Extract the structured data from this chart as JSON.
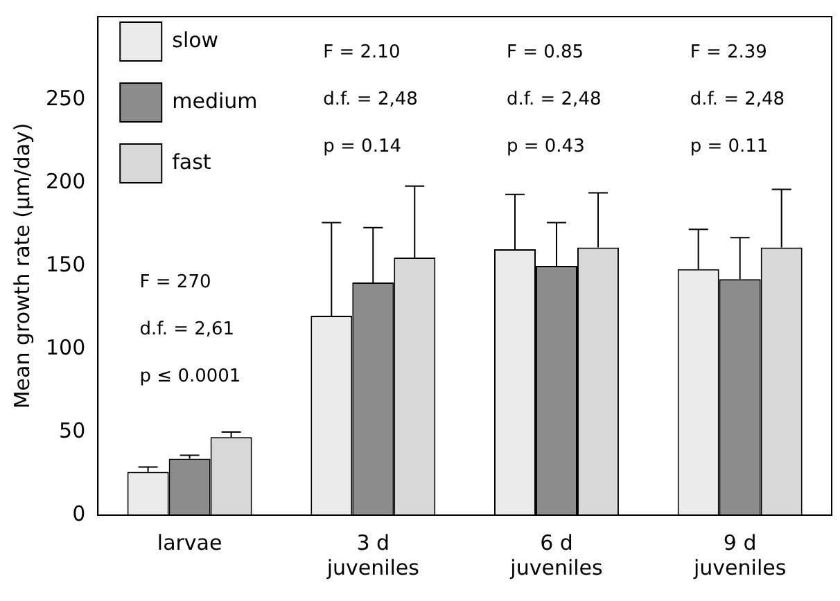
{
  "chart_data": {
    "type": "bar",
    "ylabel": "Mean growth rate (µm/day)",
    "categories": [
      "larvae",
      "3 d juveniles",
      "6 d juveniles",
      "9 d juveniles"
    ],
    "series": [
      {
        "name": "slow",
        "color": "#ebebeb",
        "values": [
          26,
          120,
          160,
          148
        ],
        "errors": [
          [
            26,
            29
          ],
          [
            120,
            176
          ],
          [
            160,
            193
          ],
          [
            148,
            172
          ]
        ]
      },
      {
        "name": "medium",
        "color": "#8c8c8c",
        "values": [
          34,
          140,
          150,
          142
        ],
        "errors": [
          [
            34,
            36
          ],
          [
            140,
            173
          ],
          [
            150,
            176
          ],
          [
            142,
            167
          ]
        ]
      },
      {
        "name": "fast",
        "color": "#d9d9d9",
        "values": [
          47,
          155,
          161,
          161
        ],
        "errors": [
          [
            47,
            50
          ],
          [
            155,
            198
          ],
          [
            161,
            194
          ],
          [
            161,
            196
          ]
        ]
      }
    ],
    "ylim": [
      0,
      300
    ],
    "yticks": [
      0,
      50,
      100,
      150,
      200,
      250
    ],
    "grid": false,
    "legend": "top left",
    "annotations": [
      "F = 270",
      "d.f. = 2,61",
      "p ≤ 0.0001",
      "F = 2.10",
      "d.f. = 2,48",
      "p = 0.14",
      "F = 0.85",
      "d.f. = 2,48",
      "p = 0.43",
      "F = 2.39",
      "d.f. = 2,48",
      "p = 0.11"
    ]
  }
}
